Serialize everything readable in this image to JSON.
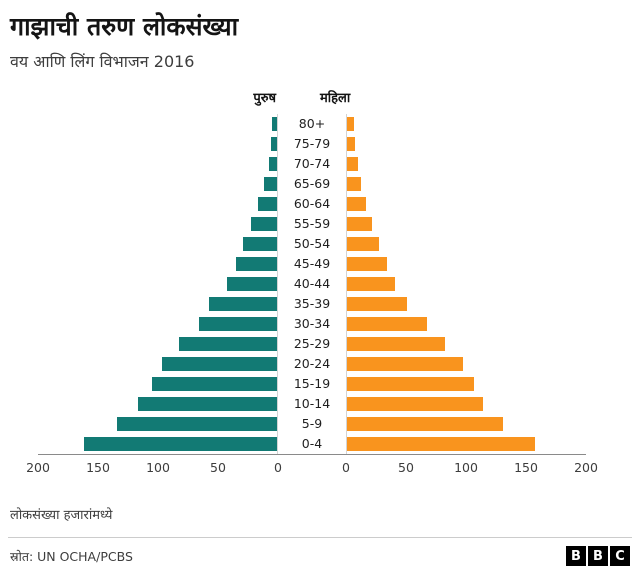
{
  "header": {
    "title": "गाझाची तरुण लोकसंख्या",
    "subtitle": "वय आणि लिंग विभाजन 2016"
  },
  "column_headers": {
    "male": "पुरुष",
    "female": "महिला"
  },
  "footer": {
    "note": "लोकसंख्या हजारांमध्ये",
    "source": "स्रोत: UN OCHA/PCBS",
    "logo_letters": [
      "B",
      "B",
      "C"
    ]
  },
  "colors": {
    "male": "#127a74",
    "female": "#f9941e"
  },
  "chart_data": {
    "type": "bar",
    "subtype": "population-pyramid",
    "title": "गाझाची तरुण लोकसंख्या",
    "subtitle": "वय आणि लिंग विभाजन 2016",
    "unit": "thousands",
    "xlabel_note": "लोकसंख्या हजारांमध्ये",
    "categories_top_to_bottom": [
      "80+",
      "75-79",
      "70-74",
      "65-69",
      "60-64",
      "55-59",
      "50-54",
      "45-49",
      "40-44",
      "35-39",
      "30-34",
      "25-29",
      "20-24",
      "15-19",
      "10-14",
      "5-9",
      "0-4"
    ],
    "series": [
      {
        "name": "पुरुष",
        "side": "left",
        "color": "#127a74",
        "values": [
          4,
          5,
          7,
          11,
          16,
          22,
          28,
          34,
          42,
          57,
          65,
          82,
          96,
          104,
          116,
          133,
          161
        ]
      },
      {
        "name": "महिला",
        "side": "right",
        "color": "#f9941e",
        "values": [
          6,
          7,
          9,
          12,
          16,
          21,
          27,
          33,
          40,
          50,
          67,
          82,
          97,
          106,
          113,
          130,
          157
        ]
      }
    ],
    "xlim": [
      0,
      200
    ],
    "ticks": [
      0,
      50,
      100,
      150,
      200
    ],
    "grid": false,
    "legend_position": "top-center"
  }
}
